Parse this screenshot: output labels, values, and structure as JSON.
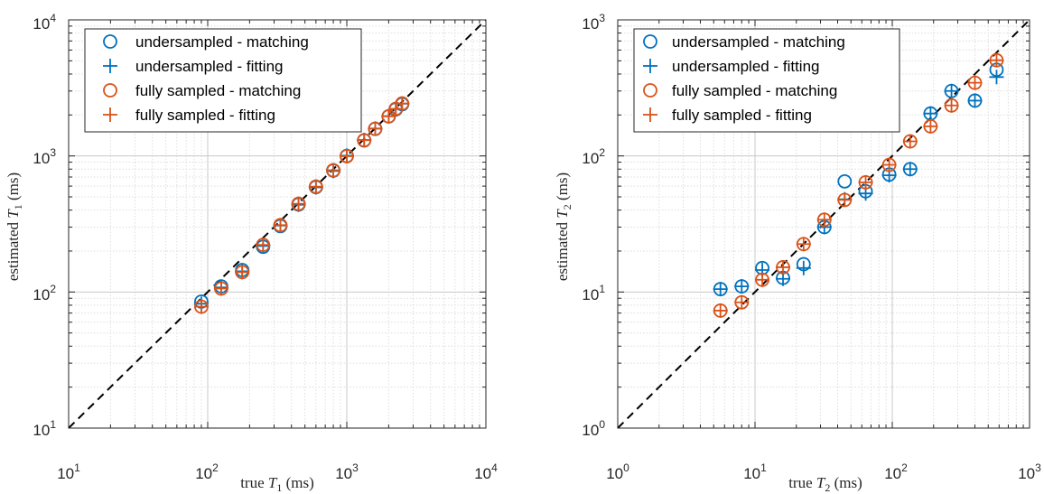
{
  "colors": {
    "undersampled": "#0072BD",
    "fully_sampled": "#D95319",
    "identity_line": "#000000"
  },
  "chart_data": [
    {
      "type": "scatter",
      "name": "T1",
      "xscale": "log",
      "yscale": "log",
      "xlim": [
        10,
        10000
      ],
      "ylim": [
        10,
        10000
      ],
      "grid": true,
      "minor_grid": true,
      "legend_position": "top-left",
      "xlabel": {
        "prefix": "true ",
        "symbol": "T",
        "subscript": "1",
        "suffix": " (ms)"
      },
      "ylabel": {
        "prefix": "estimated ",
        "symbol": "T",
        "subscript": "1",
        "suffix": " (ms)"
      },
      "ticks": [
        {
          "base": "10",
          "exp": "1",
          "value": 10
        },
        {
          "base": "10",
          "exp": "2",
          "value": 100
        },
        {
          "base": "10",
          "exp": "3",
          "value": 1000
        },
        {
          "base": "10",
          "exp": "4",
          "value": 10000
        }
      ],
      "identity_line": true,
      "series": [
        {
          "name": "undersampled - matching",
          "marker": "o",
          "color_key": "undersampled",
          "x": [
            90,
            125,
            177,
            250,
            333,
            450,
            600,
            800,
            1000,
            1333,
            1600,
            2000,
            2250,
            2500
          ],
          "y": [
            85,
            110,
            145,
            215,
            305,
            440,
            590,
            780,
            1000,
            1300,
            1580,
            1950,
            2200,
            2400
          ]
        },
        {
          "name": "undersampled - fitting",
          "marker": "+",
          "color_key": "undersampled",
          "x": [
            90,
            125,
            177,
            250,
            333,
            450,
            600,
            800,
            1000,
            1333,
            1600,
            2000,
            2250,
            2500
          ],
          "y": [
            82,
            108,
            142,
            218,
            308,
            438,
            588,
            775,
            1005,
            1310,
            1590,
            1960,
            2210,
            2420
          ]
        },
        {
          "name": "fully sampled   - matching",
          "marker": "o",
          "color_key": "fully_sampled",
          "x": [
            90,
            125,
            177,
            250,
            333,
            450,
            600,
            800,
            1000,
            1333,
            1600,
            2000,
            2250,
            2500
          ],
          "y": [
            78,
            106,
            140,
            222,
            310,
            445,
            595,
            785,
            995,
            1305,
            1585,
            1955,
            2220,
            2430
          ]
        },
        {
          "name": "fully sampled   - fitting",
          "marker": "+",
          "color_key": "fully_sampled",
          "x": [
            90,
            125,
            177,
            250,
            333,
            450,
            600,
            800,
            1000,
            1333,
            1600,
            2000,
            2250,
            2500
          ],
          "y": [
            78,
            106,
            140,
            222,
            310,
            445,
            595,
            785,
            995,
            1305,
            1585,
            1955,
            2220,
            2430
          ]
        }
      ]
    },
    {
      "type": "scatter",
      "name": "T2",
      "xscale": "log",
      "yscale": "log",
      "xlim": [
        1,
        1000
      ],
      "ylim": [
        1,
        1000
      ],
      "grid": true,
      "minor_grid": true,
      "legend_position": "top-left",
      "xlabel": {
        "prefix": "true ",
        "symbol": "T",
        "subscript": "2",
        "suffix": " (ms)"
      },
      "ylabel": {
        "prefix": "estimated ",
        "symbol": "T",
        "subscript": "2",
        "suffix": " (ms)"
      },
      "ticks": [
        {
          "base": "10",
          "exp": "0",
          "value": 1
        },
        {
          "base": "10",
          "exp": "1",
          "value": 10
        },
        {
          "base": "10",
          "exp": "2",
          "value": 100
        },
        {
          "base": "10",
          "exp": "3",
          "value": 1000
        }
      ],
      "identity_line": true,
      "series": [
        {
          "name": "undersampled - matching",
          "marker": "o",
          "color_key": "undersampled",
          "x": [
            5.6,
            8,
            11.3,
            16,
            22.6,
            32,
            45,
            64,
            95,
            135,
            190,
            270,
            400,
            575
          ],
          "y": [
            10.5,
            11,
            15,
            12.7,
            16,
            30,
            65,
            55,
            73,
            80,
            205,
            300,
            255,
            430
          ]
        },
        {
          "name": "undersampled - fitting",
          "marker": "+",
          "color_key": "undersampled",
          "x": [
            5.6,
            8,
            11.3,
            16,
            22.6,
            32,
            45,
            64,
            95,
            135,
            190,
            270,
            400,
            575
          ],
          "y": [
            10.5,
            11,
            14.5,
            12.5,
            15,
            30,
            48,
            53,
            72,
            80,
            205,
            300,
            255,
            380
          ]
        },
        {
          "name": "fully sampled   - matching",
          "marker": "o",
          "color_key": "fully_sampled",
          "x": [
            5.6,
            8,
            11.3,
            16,
            22.6,
            32,
            45,
            64,
            95,
            135,
            190,
            270,
            400,
            575
          ],
          "y": [
            7.3,
            8.4,
            12.3,
            15.2,
            22.5,
            34,
            47.5,
            64,
            86,
            128,
            165,
            235,
            345,
            505
          ]
        },
        {
          "name": "fully sampled   - fitting",
          "marker": "+",
          "color_key": "fully_sampled",
          "x": [
            5.6,
            8,
            11.3,
            16,
            22.6,
            32,
            45,
            64,
            95,
            135,
            190,
            270,
            400,
            575
          ],
          "y": [
            7.3,
            8.4,
            12.3,
            15.2,
            22.5,
            34,
            47.5,
            64,
            86,
            128,
            165,
            235,
            345,
            505
          ]
        }
      ]
    }
  ]
}
